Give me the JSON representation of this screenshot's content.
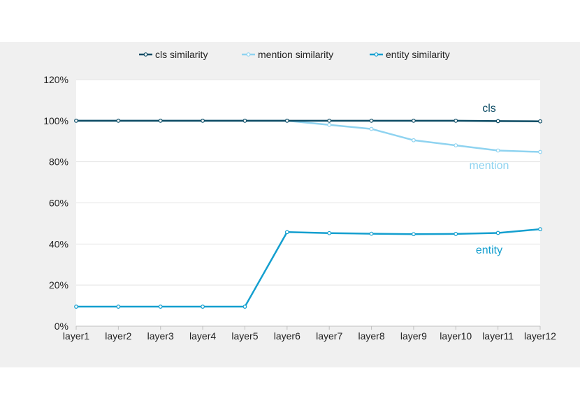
{
  "chart_data": {
    "type": "line",
    "categories": [
      "layer1",
      "layer2",
      "layer3",
      "layer4",
      "layer5",
      "layer6",
      "layer7",
      "layer8",
      "layer9",
      "layer10",
      "layer11",
      "layer12"
    ],
    "ylim": [
      0,
      120
    ],
    "y_ticks": [
      "0%",
      "20%",
      "40%",
      "60%",
      "80%",
      "100%",
      "120%"
    ],
    "grid": "horizontal",
    "legend": "top-center",
    "series": [
      {
        "name": "cls similarity",
        "label": "cls",
        "color": "#0b4a63",
        "values": [
          100,
          100,
          100,
          100,
          100,
          100,
          100,
          100,
          100,
          100,
          99.8,
          99.7
        ]
      },
      {
        "name": "mention similarity",
        "label": "mention",
        "color": "#8fd3f0",
        "values": [
          100,
          100,
          100,
          100,
          100,
          100,
          98,
          96,
          90.5,
          88,
          85.5,
          84.8
        ]
      },
      {
        "name": "entity similarity",
        "label": "entity",
        "color": "#149fcf",
        "values": [
          9.5,
          9.5,
          9.5,
          9.5,
          9.5,
          45.8,
          45.3,
          45,
          44.8,
          44.9,
          45.4,
          47.2
        ]
      }
    ]
  }
}
